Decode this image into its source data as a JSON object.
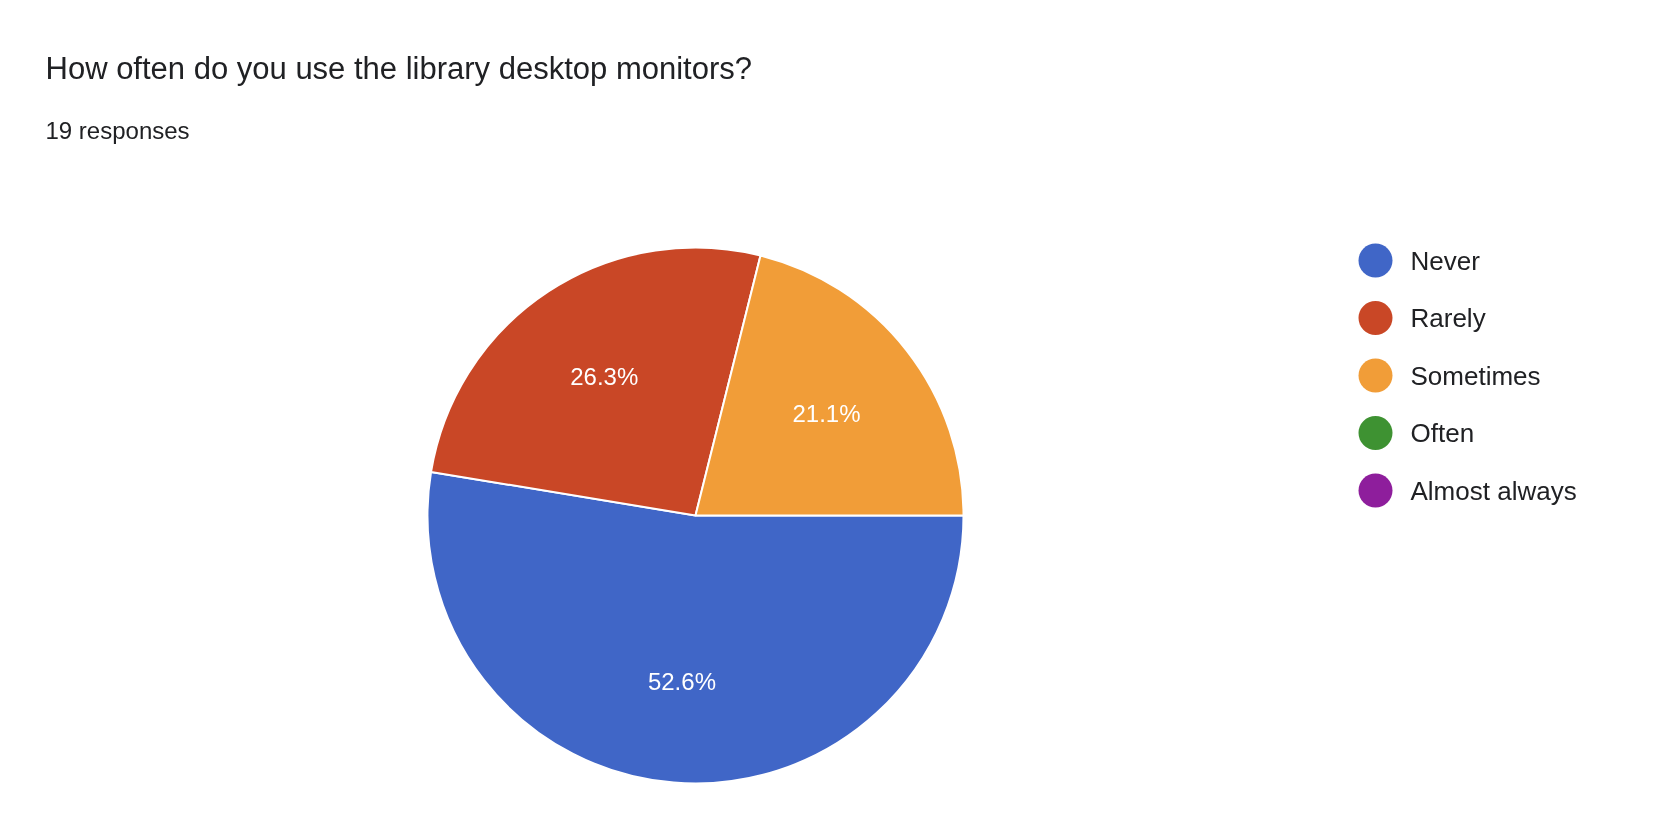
{
  "chart_data": {
    "type": "pie",
    "title": "How often do you use the library desktop monitors?",
    "subtitle": "19 responses",
    "categories": [
      "Never",
      "Rarely",
      "Sometimes",
      "Often",
      "Almost always"
    ],
    "values": [
      52.6,
      26.3,
      21.1,
      0,
      0
    ],
    "value_labels": [
      "52.6%",
      "26.3%",
      "21.1%",
      null,
      null
    ],
    "colors": [
      "#4066c7",
      "#c94726",
      "#f19d38",
      "#3e9232",
      "#8e1e9c"
    ],
    "legend": "right"
  }
}
